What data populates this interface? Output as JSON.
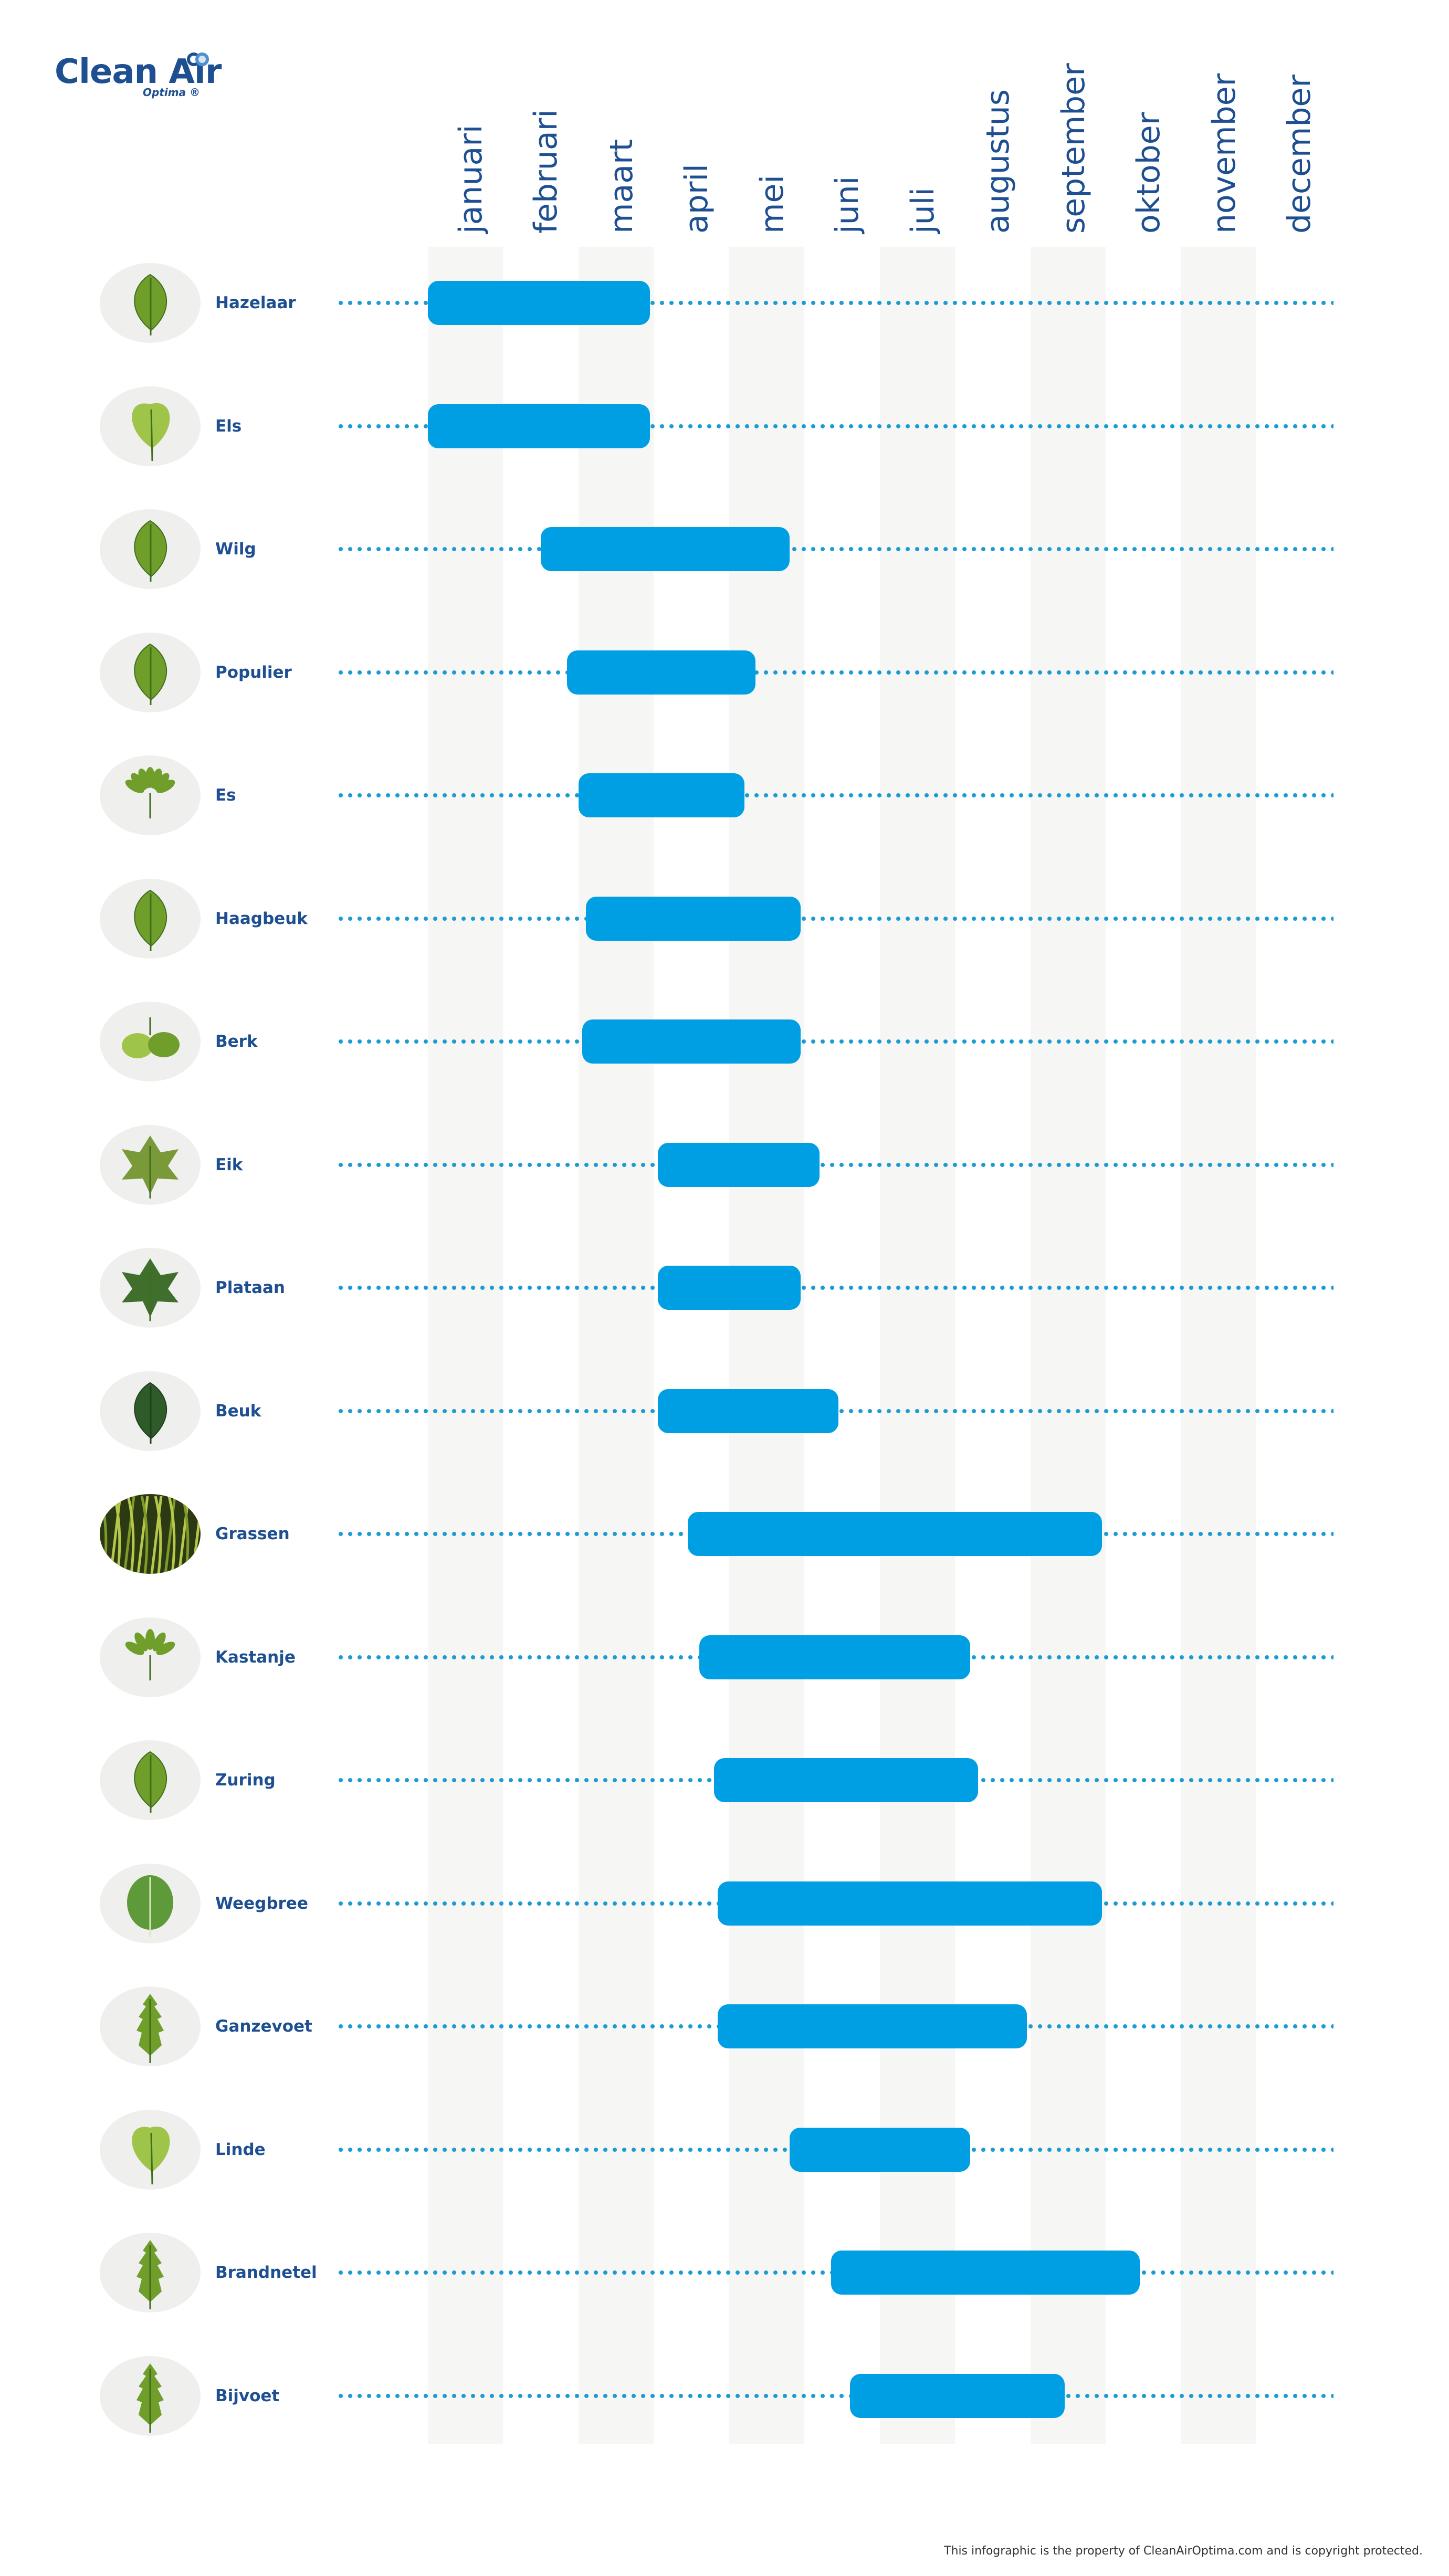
{
  "brand": {
    "name": "Clean Air",
    "sub": "Optima ®",
    "color": "#1d4f91"
  },
  "footer": "This infographic is the property of CleanAirOptima.com and is copyright protected.",
  "colors": {
    "bar": "#009fe3",
    "dots": "#1a9bd3",
    "labels": "#1d4f91",
    "stripe": "#f6f6f4",
    "icon_bg": "#efefee"
  },
  "chart_data": {
    "type": "bar",
    "orientation": "horizontal-range",
    "months": [
      "januari",
      "februari",
      "maart",
      "april",
      "mei",
      "juni",
      "juli",
      "augustus",
      "september",
      "oktober",
      "november",
      "december"
    ],
    "series": [
      {
        "name": "Hazelaar",
        "start": 1.0,
        "end": 3.95,
        "icon": "hazel-leaf-icon"
      },
      {
        "name": "Els",
        "start": 1.0,
        "end": 3.95,
        "icon": "alder-leaf-icon"
      },
      {
        "name": "Wilg",
        "start": 2.5,
        "end": 5.8,
        "icon": "willow-leaf-icon"
      },
      {
        "name": "Populier",
        "start": 2.85,
        "end": 5.35,
        "icon": "poplar-leaf-icon"
      },
      {
        "name": "Es",
        "start": 3.0,
        "end": 5.2,
        "icon": "ash-leaf-icon"
      },
      {
        "name": "Haagbeuk",
        "start": 3.1,
        "end": 5.95,
        "icon": "hornbeam-leaf-icon"
      },
      {
        "name": "Berk",
        "start": 3.05,
        "end": 5.95,
        "icon": "birch-leaf-icon"
      },
      {
        "name": "Eik",
        "start": 4.05,
        "end": 6.2,
        "icon": "oak-leaf-icon"
      },
      {
        "name": "Plataan",
        "start": 4.05,
        "end": 5.95,
        "icon": "plane-leaf-icon"
      },
      {
        "name": "Beuk",
        "start": 4.05,
        "end": 6.45,
        "icon": "beech-leaf-icon"
      },
      {
        "name": "Grassen",
        "start": 4.45,
        "end": 9.95,
        "icon": "grass-icon"
      },
      {
        "name": "Kastanje",
        "start": 4.6,
        "end": 8.2,
        "icon": "chestnut-leaf-icon"
      },
      {
        "name": "Zuring",
        "start": 4.8,
        "end": 8.3,
        "icon": "sorrel-leaf-icon"
      },
      {
        "name": "Weegbree",
        "start": 4.85,
        "end": 9.95,
        "icon": "plantain-leaf-icon"
      },
      {
        "name": "Ganzevoet",
        "start": 4.85,
        "end": 8.95,
        "icon": "goosefoot-leaf-icon"
      },
      {
        "name": "Linde",
        "start": 5.8,
        "end": 8.2,
        "icon": "linden-leaf-icon"
      },
      {
        "name": "Brandnetel",
        "start": 6.35,
        "end": 10.45,
        "icon": "nettle-leaf-icon"
      },
      {
        "name": "Bijvoet",
        "start": 6.6,
        "end": 9.45,
        "icon": "mugwort-leaf-icon"
      }
    ],
    "legend": "none",
    "grid": "alternating month columns"
  }
}
